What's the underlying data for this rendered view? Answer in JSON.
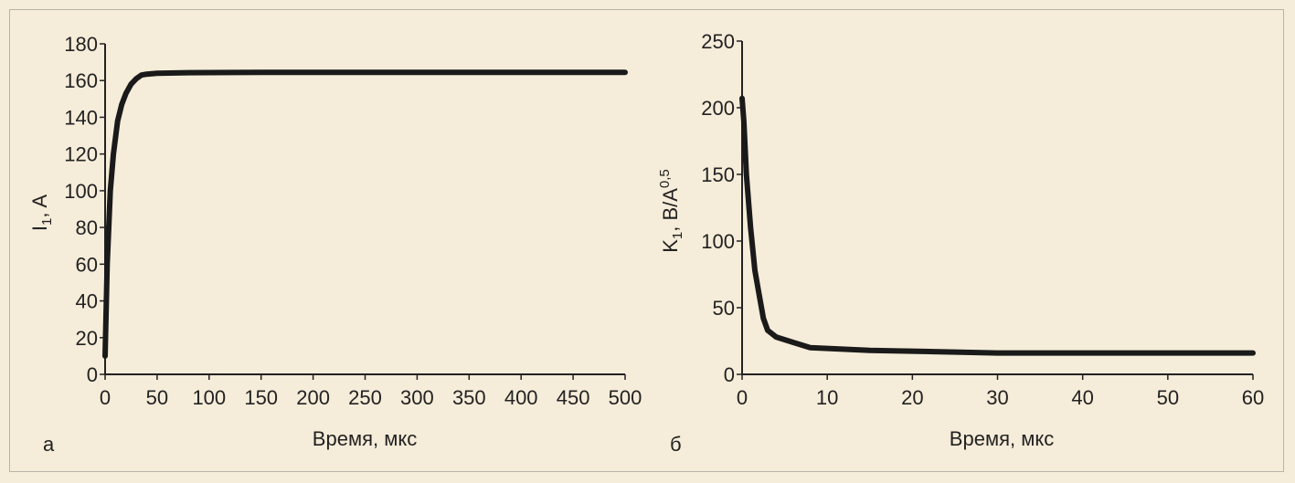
{
  "colors": {
    "background": "#f5ecd9",
    "curve": "#1a1a1a",
    "axis": "#222222",
    "frame": "#b8b3a8"
  },
  "chart_data": [
    {
      "type": "line",
      "panel_label": "а",
      "xlabel": "Время, мкс",
      "ylabel_main": "I",
      "ylabel_sub": "1",
      "ylabel_rest": ", A",
      "xlim": [
        0,
        500
      ],
      "ylim": [
        0,
        180
      ],
      "xticks": [
        0,
        50,
        100,
        150,
        200,
        250,
        300,
        350,
        400,
        450,
        500
      ],
      "yticks": [
        0,
        20,
        40,
        60,
        80,
        100,
        120,
        140,
        160,
        180
      ],
      "grid": false,
      "series": [
        {
          "x": [
            0,
            2,
            5,
            8,
            12,
            16,
            20,
            25,
            30,
            35,
            40,
            50,
            80,
            150,
            300,
            500
          ],
          "y": [
            10,
            60,
            100,
            120,
            138,
            147,
            153,
            158,
            161,
            163,
            163.5,
            164,
            164.3,
            164.5,
            164.5,
            164.5
          ]
        }
      ]
    },
    {
      "type": "line",
      "panel_label": "б",
      "xlabel": "Время, мкс",
      "ylabel_main": "K",
      "ylabel_sub": "1",
      "ylabel_rest": ", В/A",
      "ylabel_sup": "0,5",
      "xlim": [
        0,
        60
      ],
      "ylim": [
        0,
        250
      ],
      "xticks": [
        0,
        10,
        20,
        30,
        40,
        50,
        60
      ],
      "yticks": [
        0,
        50,
        100,
        150,
        200,
        250
      ],
      "grid": false,
      "series": [
        {
          "x": [
            0,
            0.2,
            0.5,
            1,
            1.5,
            2,
            2.5,
            3,
            4,
            6,
            8,
            15,
            30,
            45,
            60
          ],
          "y": [
            207,
            190,
            150,
            110,
            78,
            60,
            42,
            33,
            28,
            24,
            20,
            18,
            16,
            16,
            16
          ]
        }
      ]
    }
  ]
}
